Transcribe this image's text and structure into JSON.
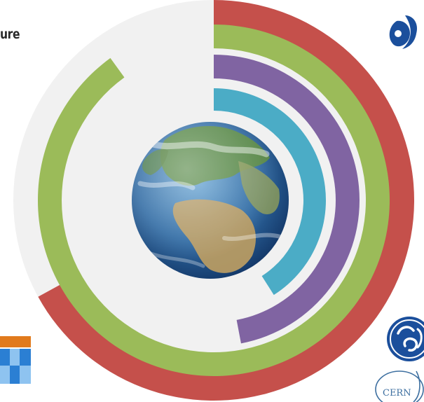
{
  "title_fragment": "ure",
  "chart_data": {
    "type": "radial-bar",
    "title": "ure",
    "axis_total": 100,
    "rings": [
      {
        "color": "#c5504b",
        "value": 67
      },
      {
        "color": "#9bbb59",
        "value": 90
      },
      {
        "color": "#8064a2",
        "value": 47
      },
      {
        "color": "#4bacc6",
        "value": 41
      }
    ],
    "track_color": "#f1f1f1",
    "center_image": "earth-globe",
    "legend": "none",
    "grid": false
  },
  "logos": [
    {
      "name": "ebrd-logo",
      "color": "#1b4f9c"
    },
    {
      "name": "ge-logo",
      "color": "#1b4f9c"
    },
    {
      "name": "cern-logo",
      "text": "CERN",
      "color": "#3d6fa0"
    },
    {
      "name": "partner-logo-tile",
      "colors": [
        "#e17a1c",
        "#2b7fd3",
        "#8ec3f0"
      ]
    }
  ]
}
